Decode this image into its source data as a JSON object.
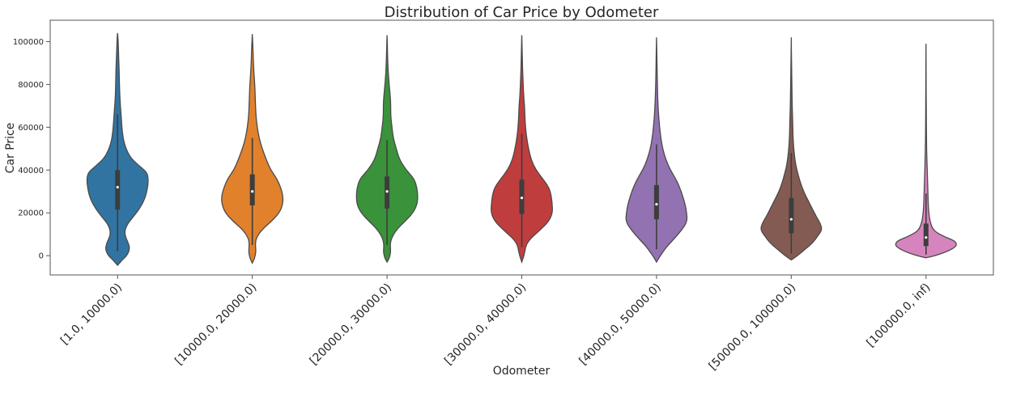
{
  "chart_data": {
    "type": "violin",
    "title": "Distribution of Car Price by Odometer",
    "xlabel": "Odometer",
    "ylabel": "Car Price",
    "ylim": [
      -9000,
      110000
    ],
    "yticks": [
      0,
      20000,
      40000,
      60000,
      80000,
      100000
    ],
    "ytick_labels": [
      "0",
      "20000",
      "40000",
      "60000",
      "80000",
      "100000"
    ],
    "grid": false,
    "categories": [
      "[1.0, 10000.0)",
      "[10000.0, 20000.0)",
      "[20000.0, 30000.0)",
      "[30000.0, 40000.0)",
      "[40000.0, 50000.0)",
      "[50000.0, 100000.0)",
      "[100000.0, inf)"
    ],
    "colors": [
      "#3274a1",
      "#e1812c",
      "#3a923a",
      "#c03d3e",
      "#9372b2",
      "#845b53",
      "#d684bd"
    ],
    "violins": [
      {
        "min": -4500,
        "max": 104000,
        "q1": 21500,
        "median": 32000,
        "q3": 40000,
        "whisker_low": 2000,
        "whisker_high": 66000,
        "profile": [
          [
            -4500,
            0
          ],
          [
            -2000,
            0.15
          ],
          [
            0,
            0.3
          ],
          [
            3000,
            0.4
          ],
          [
            6000,
            0.35
          ],
          [
            10000,
            0.22
          ],
          [
            14000,
            0.28
          ],
          [
            18000,
            0.5
          ],
          [
            22000,
            0.72
          ],
          [
            27000,
            0.9
          ],
          [
            32000,
            0.98
          ],
          [
            36000,
            1
          ],
          [
            39000,
            0.95
          ],
          [
            42000,
            0.7
          ],
          [
            46000,
            0.4
          ],
          [
            52000,
            0.22
          ],
          [
            58000,
            0.15
          ],
          [
            65000,
            0.12
          ],
          [
            72000,
            0.08
          ],
          [
            80000,
            0.06
          ],
          [
            88000,
            0.05
          ],
          [
            95000,
            0.03
          ],
          [
            100000,
            0.02
          ],
          [
            104000,
            0
          ]
        ]
      },
      {
        "min": -3500,
        "max": 103500,
        "q1": 23500,
        "median": 30000,
        "q3": 38000,
        "whisker_low": 5000,
        "whisker_high": 55000,
        "profile": [
          [
            -3500,
            0
          ],
          [
            -1000,
            0.08
          ],
          [
            2000,
            0.12
          ],
          [
            5000,
            0.1
          ],
          [
            8000,
            0.12
          ],
          [
            12000,
            0.3
          ],
          [
            16000,
            0.62
          ],
          [
            20000,
            0.88
          ],
          [
            24000,
            0.99
          ],
          [
            28000,
            1
          ],
          [
            32000,
            0.92
          ],
          [
            36000,
            0.8
          ],
          [
            40000,
            0.6
          ],
          [
            45000,
            0.45
          ],
          [
            50000,
            0.32
          ],
          [
            55000,
            0.22
          ],
          [
            60000,
            0.16
          ],
          [
            65000,
            0.12
          ],
          [
            72000,
            0.1
          ],
          [
            80000,
            0.08
          ],
          [
            86000,
            0.05
          ],
          [
            92000,
            0.03
          ],
          [
            98000,
            0.02
          ],
          [
            103500,
            0
          ]
        ]
      },
      {
        "min": -3000,
        "max": 103000,
        "q1": 22000,
        "median": 30000,
        "q3": 37000,
        "whisker_low": 5000,
        "whisker_high": 54000,
        "profile": [
          [
            -3000,
            0
          ],
          [
            -1000,
            0.08
          ],
          [
            2000,
            0.12
          ],
          [
            5000,
            0.1
          ],
          [
            8000,
            0.14
          ],
          [
            12000,
            0.3
          ],
          [
            16000,
            0.58
          ],
          [
            20000,
            0.85
          ],
          [
            24000,
            0.98
          ],
          [
            28000,
            1
          ],
          [
            32000,
            0.97
          ],
          [
            36000,
            0.88
          ],
          [
            40000,
            0.62
          ],
          [
            45000,
            0.4
          ],
          [
            50000,
            0.3
          ],
          [
            55000,
            0.2
          ],
          [
            60000,
            0.16
          ],
          [
            65000,
            0.12
          ],
          [
            72000,
            0.12
          ],
          [
            78000,
            0.08
          ],
          [
            85000,
            0.04
          ],
          [
            92000,
            0.02
          ],
          [
            98000,
            0.01
          ],
          [
            103000,
            0
          ]
        ]
      },
      {
        "min": -3000,
        "max": 103000,
        "q1": 19500,
        "median": 27000,
        "q3": 35500,
        "whisker_low": 4000,
        "whisker_high": 57000,
        "profile": [
          [
            -3000,
            0
          ],
          [
            -500,
            0.06
          ],
          [
            2000,
            0.1
          ],
          [
            5000,
            0.14
          ],
          [
            8000,
            0.28
          ],
          [
            12000,
            0.6
          ],
          [
            16000,
            0.88
          ],
          [
            20000,
            1
          ],
          [
            24000,
            0.99
          ],
          [
            28000,
            0.96
          ],
          [
            32000,
            0.88
          ],
          [
            36000,
            0.68
          ],
          [
            40000,
            0.46
          ],
          [
            45000,
            0.3
          ],
          [
            50000,
            0.22
          ],
          [
            55000,
            0.16
          ],
          [
            60000,
            0.12
          ],
          [
            65000,
            0.1
          ],
          [
            70000,
            0.09
          ],
          [
            75000,
            0.06
          ],
          [
            82000,
            0.04
          ],
          [
            90000,
            0.02
          ],
          [
            97000,
            0.01
          ],
          [
            103000,
            0
          ]
        ]
      },
      {
        "min": -3000,
        "max": 102000,
        "q1": 17000,
        "median": 24000,
        "q3": 33000,
        "whisker_low": 3000,
        "whisker_high": 52000,
        "profile": [
          [
            -3000,
            0
          ],
          [
            -500,
            0.1
          ],
          [
            2000,
            0.22
          ],
          [
            5000,
            0.38
          ],
          [
            8000,
            0.58
          ],
          [
            12000,
            0.82
          ],
          [
            16000,
            1
          ],
          [
            20000,
            0.98
          ],
          [
            24000,
            0.93
          ],
          [
            28000,
            0.85
          ],
          [
            32000,
            0.75
          ],
          [
            36000,
            0.62
          ],
          [
            40000,
            0.45
          ],
          [
            45000,
            0.3
          ],
          [
            50000,
            0.2
          ],
          [
            55000,
            0.14
          ],
          [
            60000,
            0.1
          ],
          [
            65000,
            0.07
          ],
          [
            70000,
            0.05
          ],
          [
            78000,
            0.03
          ],
          [
            86000,
            0.02
          ],
          [
            94000,
            0.01
          ],
          [
            102000,
            0
          ]
        ]
      },
      {
        "min": -2000,
        "max": 102000,
        "q1": 10500,
        "median": 17000,
        "q3": 27000,
        "whisker_low": 1000,
        "whisker_high": 48000,
        "profile": [
          [
            -2000,
            0
          ],
          [
            0,
            0.2
          ],
          [
            3000,
            0.45
          ],
          [
            6000,
            0.7
          ],
          [
            9000,
            0.85
          ],
          [
            12000,
            1
          ],
          [
            15000,
            0.95
          ],
          [
            18000,
            0.82
          ],
          [
            22000,
            0.68
          ],
          [
            26000,
            0.54
          ],
          [
            30000,
            0.4
          ],
          [
            34000,
            0.3
          ],
          [
            38000,
            0.22
          ],
          [
            42000,
            0.15
          ],
          [
            46000,
            0.11
          ],
          [
            50000,
            0.08
          ],
          [
            55000,
            0.06
          ],
          [
            60000,
            0.05
          ],
          [
            65000,
            0.04
          ],
          [
            70000,
            0.03
          ],
          [
            80000,
            0.02
          ],
          [
            90000,
            0.01
          ],
          [
            102000,
            0
          ]
        ]
      },
      {
        "min": -1000,
        "max": 99000,
        "q1": 4500,
        "median": 8500,
        "q3": 15000,
        "whisker_low": 500,
        "whisker_high": 29000,
        "profile": [
          [
            -1000,
            0
          ],
          [
            0,
            0.3
          ],
          [
            2000,
            0.7
          ],
          [
            4000,
            0.95
          ],
          [
            5500,
            1
          ],
          [
            7000,
            0.92
          ],
          [
            9000,
            0.58
          ],
          [
            11000,
            0.32
          ],
          [
            13000,
            0.2
          ],
          [
            16000,
            0.13
          ],
          [
            20000,
            0.09
          ],
          [
            25000,
            0.07
          ],
          [
            30000,
            0.06
          ],
          [
            35000,
            0.05
          ],
          [
            40000,
            0.04
          ],
          [
            45000,
            0.03
          ],
          [
            50000,
            0.02
          ],
          [
            60000,
            0.012
          ],
          [
            70000,
            0.008
          ],
          [
            80000,
            0.005
          ],
          [
            90000,
            0.003
          ],
          [
            99000,
            0
          ]
        ]
      }
    ]
  }
}
